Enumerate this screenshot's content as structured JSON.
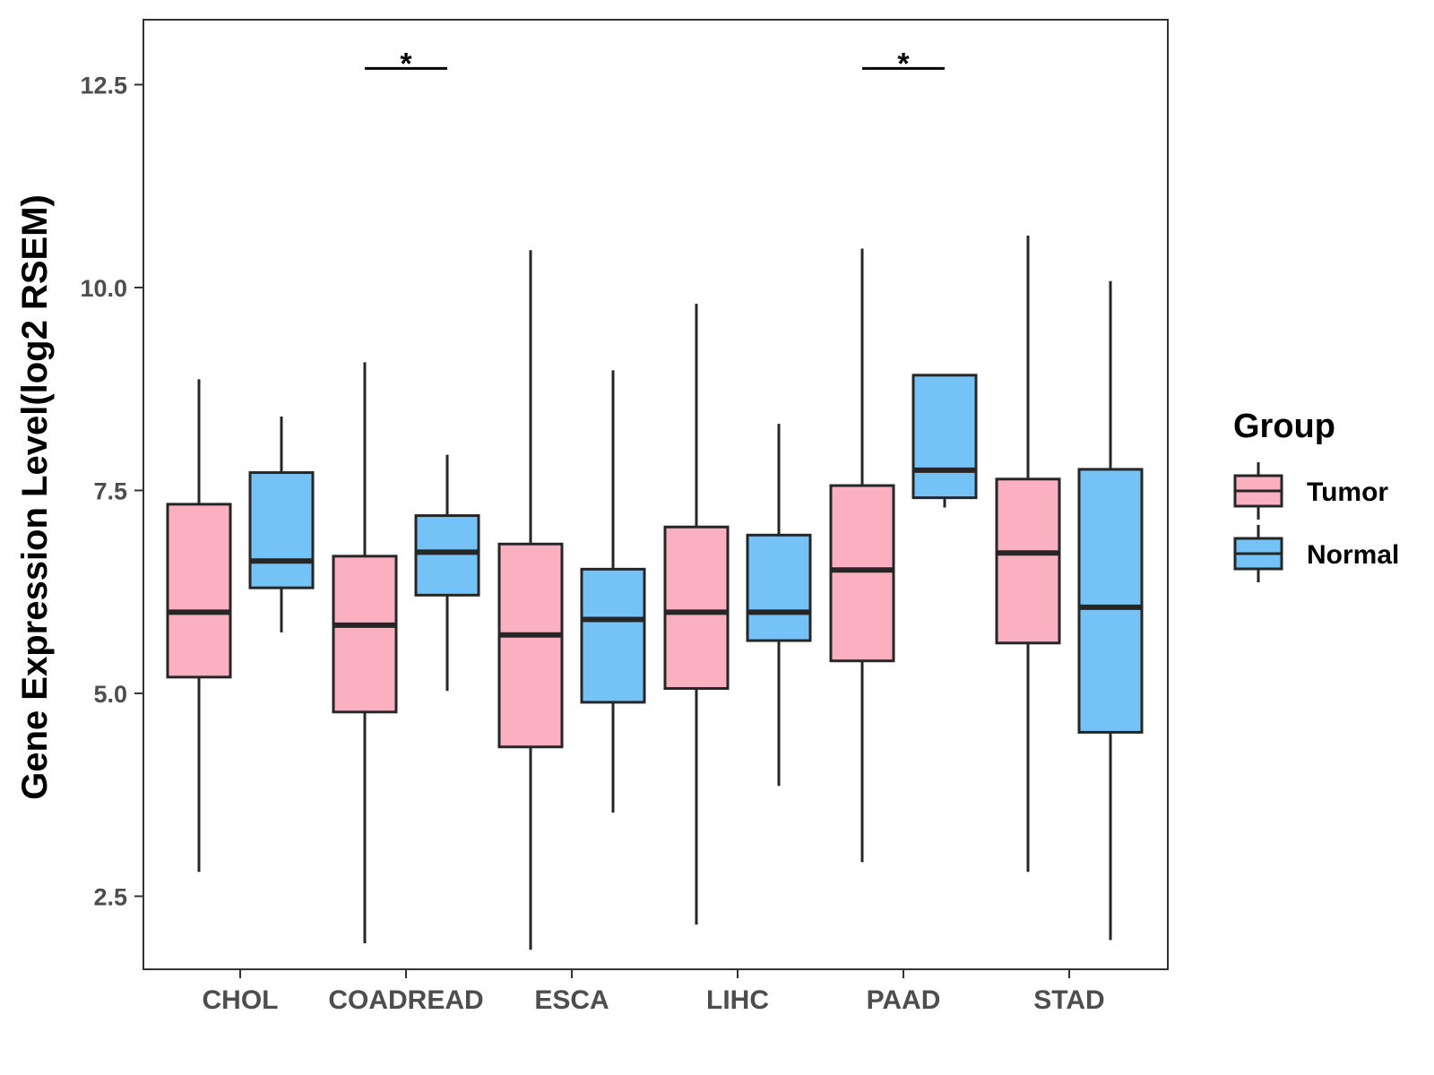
{
  "chart_data": {
    "type": "boxplot",
    "title": "",
    "xlabel": "",
    "ylabel": "Gene Expression Level(log2 RSEM)",
    "ylim": [
      1.6,
      13.3
    ],
    "yticks": [
      2.5,
      5.0,
      7.5,
      10.0,
      12.5
    ],
    "ytick_labels": [
      "2.5",
      "5.0",
      "7.5",
      "10.0",
      "12.5"
    ],
    "categories": [
      "CHOL",
      "COADREAD",
      "ESCA",
      "LIHC",
      "PAAD",
      "STAD"
    ],
    "legend": {
      "title": "Group",
      "position": "right",
      "entries": [
        {
          "name": "Tumor",
          "color": "#FBB0C2"
        },
        {
          "name": "Normal",
          "color": "#75C2F7"
        }
      ]
    },
    "series": [
      {
        "name": "Tumor",
        "color": "#FBB0C2",
        "boxes": [
          {
            "category": "CHOL",
            "min": 2.8,
            "q1": 5.2,
            "median": 6.0,
            "q3": 7.33,
            "max": 8.87
          },
          {
            "category": "COADREAD",
            "min": 1.92,
            "q1": 4.77,
            "median": 5.84,
            "q3": 6.69,
            "max": 9.08
          },
          {
            "category": "ESCA",
            "min": 1.84,
            "q1": 4.34,
            "median": 5.72,
            "q3": 6.84,
            "max": 10.46
          },
          {
            "category": "LIHC",
            "min": 2.15,
            "q1": 5.06,
            "median": 6.0,
            "q3": 7.05,
            "max": 9.8
          },
          {
            "category": "PAAD",
            "min": 2.92,
            "q1": 5.4,
            "median": 6.52,
            "q3": 7.56,
            "max": 10.48
          },
          {
            "category": "STAD",
            "min": 2.8,
            "q1": 5.62,
            "median": 6.73,
            "q3": 7.64,
            "max": 10.64
          }
        ]
      },
      {
        "name": "Normal",
        "color": "#75C2F7",
        "boxes": [
          {
            "category": "CHOL",
            "min": 5.75,
            "q1": 6.3,
            "median": 6.63,
            "q3": 7.72,
            "max": 8.41
          },
          {
            "category": "COADREAD",
            "min": 5.03,
            "q1": 6.21,
            "median": 6.74,
            "q3": 7.19,
            "max": 7.94
          },
          {
            "category": "ESCA",
            "min": 3.53,
            "q1": 4.89,
            "median": 5.91,
            "q3": 6.53,
            "max": 8.98
          },
          {
            "category": "LIHC",
            "min": 3.86,
            "q1": 5.65,
            "median": 6.0,
            "q3": 6.95,
            "max": 8.32
          },
          {
            "category": "PAAD",
            "min": 7.29,
            "q1": 7.41,
            "median": 7.75,
            "q3": 8.92,
            "max": 8.92
          },
          {
            "category": "STAD",
            "min": 1.96,
            "q1": 4.52,
            "median": 6.06,
            "q3": 7.76,
            "max": 10.08
          }
        ]
      }
    ],
    "annotations": [
      {
        "category": "COADREAD",
        "label": "*",
        "y": 12.7
      },
      {
        "category": "PAAD",
        "label": "*",
        "y": 12.7
      }
    ],
    "grid": false
  }
}
